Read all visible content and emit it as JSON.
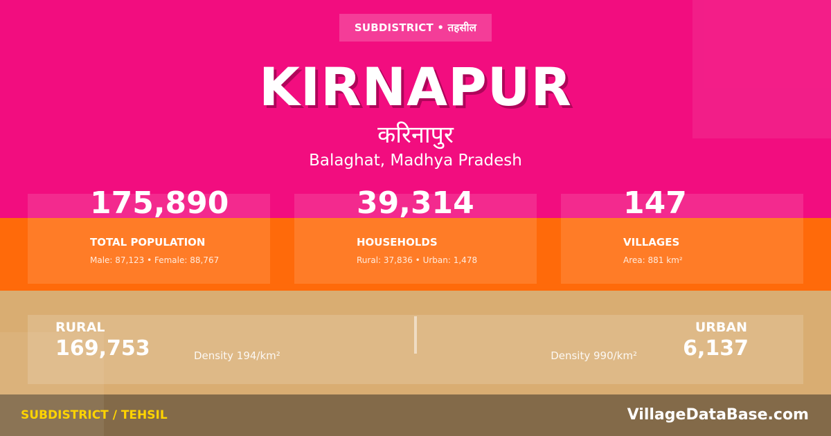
{
  "header": {
    "badge": "SUBDISTRICT • तहसील",
    "title": "KIRNAPUR",
    "title_native": "करिनापुर",
    "location": "Balaghat, Madhya Pradesh"
  },
  "stats": [
    {
      "value": "175,890",
      "label": "TOTAL POPULATION",
      "sub": "Male: 87,123 • Female: 88,767"
    },
    {
      "value": "39,314",
      "label": "HOUSEHOLDS",
      "sub": "Rural: 37,836 • Urban: 1,478"
    },
    {
      "value": "147",
      "label": "VILLAGES",
      "sub": "Area: 881 km²"
    }
  ],
  "rural_urban": {
    "rural": {
      "label": "RURAL",
      "value": "169,753",
      "density": "Density 194/km²"
    },
    "urban": {
      "label": "URBAN",
      "value": "6,137",
      "density": "Density 990/km²"
    }
  },
  "footer": {
    "category": "SUBDISTRICT / TEHSIL",
    "site": "VillageDataBase.com"
  },
  "colors": {
    "pink": "#f20d7f",
    "orange": "#ff6a0a",
    "tan": "#d9ad72",
    "footer": "#836a49",
    "accent_yellow": "#ffd400"
  }
}
